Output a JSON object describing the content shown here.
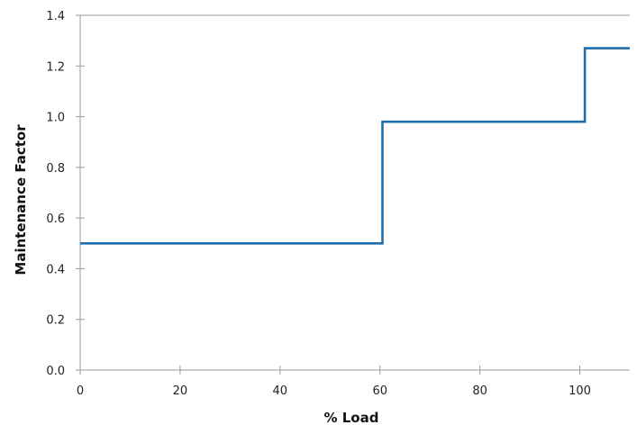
{
  "chart_data": {
    "type": "line",
    "step": true,
    "xlabel": "% Load",
    "ylabel": "Maintenance Factor",
    "xlim": [
      0,
      110
    ],
    "ylim": [
      0,
      1.4
    ],
    "x_ticks": [
      0,
      20,
      40,
      60,
      80,
      100
    ],
    "x_tick_labels": [
      "0",
      "20",
      "40",
      "60",
      "80",
      "100"
    ],
    "y_ticks": [
      0,
      0.2,
      0.4,
      0.6,
      0.8,
      1.0,
      1.2,
      1.4
    ],
    "y_tick_labels": [
      "0.0",
      "0.2",
      "0.4",
      "0.6",
      "0.8",
      "1.0",
      "1.2",
      "1.4"
    ],
    "grid": false,
    "color": "#1f6fad",
    "series": [
      {
        "points": [
          {
            "x": 0,
            "y": 0.5
          },
          {
            "x": 60.5,
            "y": 0.5
          },
          {
            "x": 60.5,
            "y": 0.98
          },
          {
            "x": 101,
            "y": 0.98
          },
          {
            "x": 101,
            "y": 1.27
          },
          {
            "x": 110,
            "y": 1.27
          }
        ]
      }
    ]
  }
}
